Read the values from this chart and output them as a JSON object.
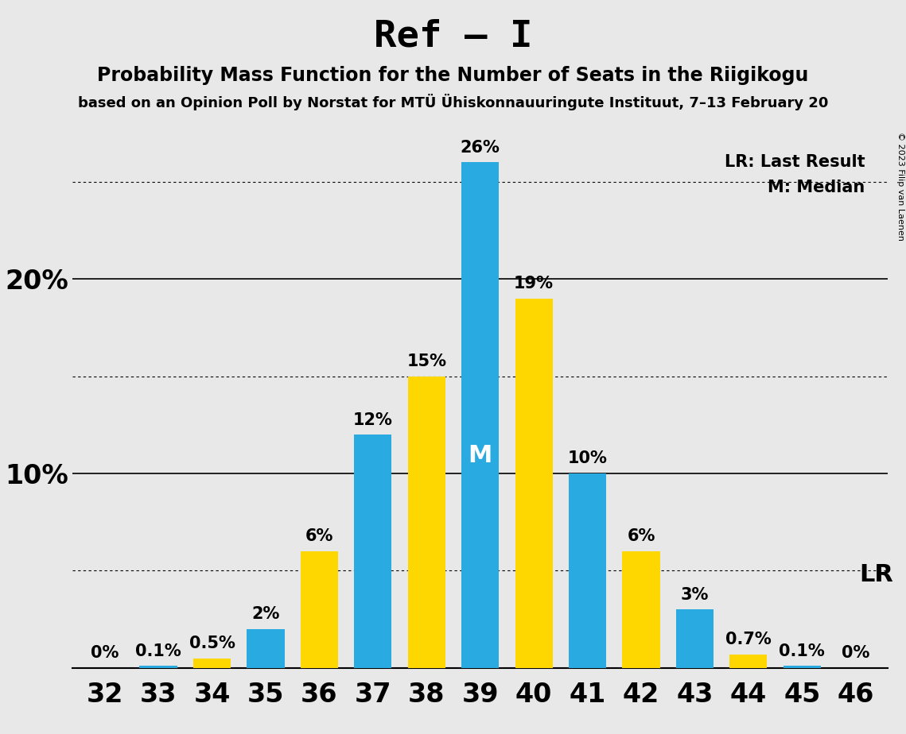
{
  "title": "Ref – I",
  "subtitle1": "Probability Mass Function for the Number of Seats in the Riigikogu",
  "subtitle2": "based on an Opinion Poll by Norstat for MTÜ Ühiskonnauuringute Instituut, 7–13 February 20",
  "copyright": "© 2023 Filip van Laenen",
  "categories": [
    32,
    33,
    34,
    35,
    36,
    37,
    38,
    39,
    40,
    41,
    42,
    43,
    44,
    45,
    46
  ],
  "values": [
    0.0,
    0.1,
    0.5,
    2.0,
    6.0,
    12.0,
    15.0,
    26.0,
    19.0,
    10.0,
    6.0,
    3.0,
    0.7,
    0.1,
    0.0
  ],
  "colors": [
    "#29ABE2",
    "#29ABE2",
    "#FFD700",
    "#29ABE2",
    "#FFD700",
    "#29ABE2",
    "#FFD700",
    "#29ABE2",
    "#FFD700",
    "#29ABE2",
    "#FFD700",
    "#29ABE2",
    "#FFD700",
    "#29ABE2",
    "#29ABE2"
  ],
  "labels": [
    "0%",
    "0.1%",
    "0.5%",
    "2%",
    "6%",
    "12%",
    "15%",
    "26%",
    "19%",
    "10%",
    "6%",
    "3%",
    "0.7%",
    "0.1%",
    "0%"
  ],
  "blue_color": "#29ABE2",
  "yellow_color": "#FFD700",
  "background_color": "#E8E8E8",
  "median_idx": 7,
  "lr_idx": 11,
  "median_label": "M",
  "lr_label": "LR",
  "legend_lr": "LR: Last Result",
  "legend_m": "M: Median",
  "solid_yticks": [
    10,
    20
  ],
  "dotted_yticks": [
    5,
    15,
    25
  ],
  "ytick_positions": [
    10,
    20
  ],
  "ytick_labels_left": [
    "10%",
    "20%"
  ],
  "ymax": 28.5,
  "bar_width": 0.7,
  "title_fontsize": 34,
  "subtitle1_fontsize": 17,
  "subtitle2_fontsize": 13,
  "axis_label_fontsize": 24,
  "bar_label_fontsize": 15,
  "tick_fontsize": 24
}
